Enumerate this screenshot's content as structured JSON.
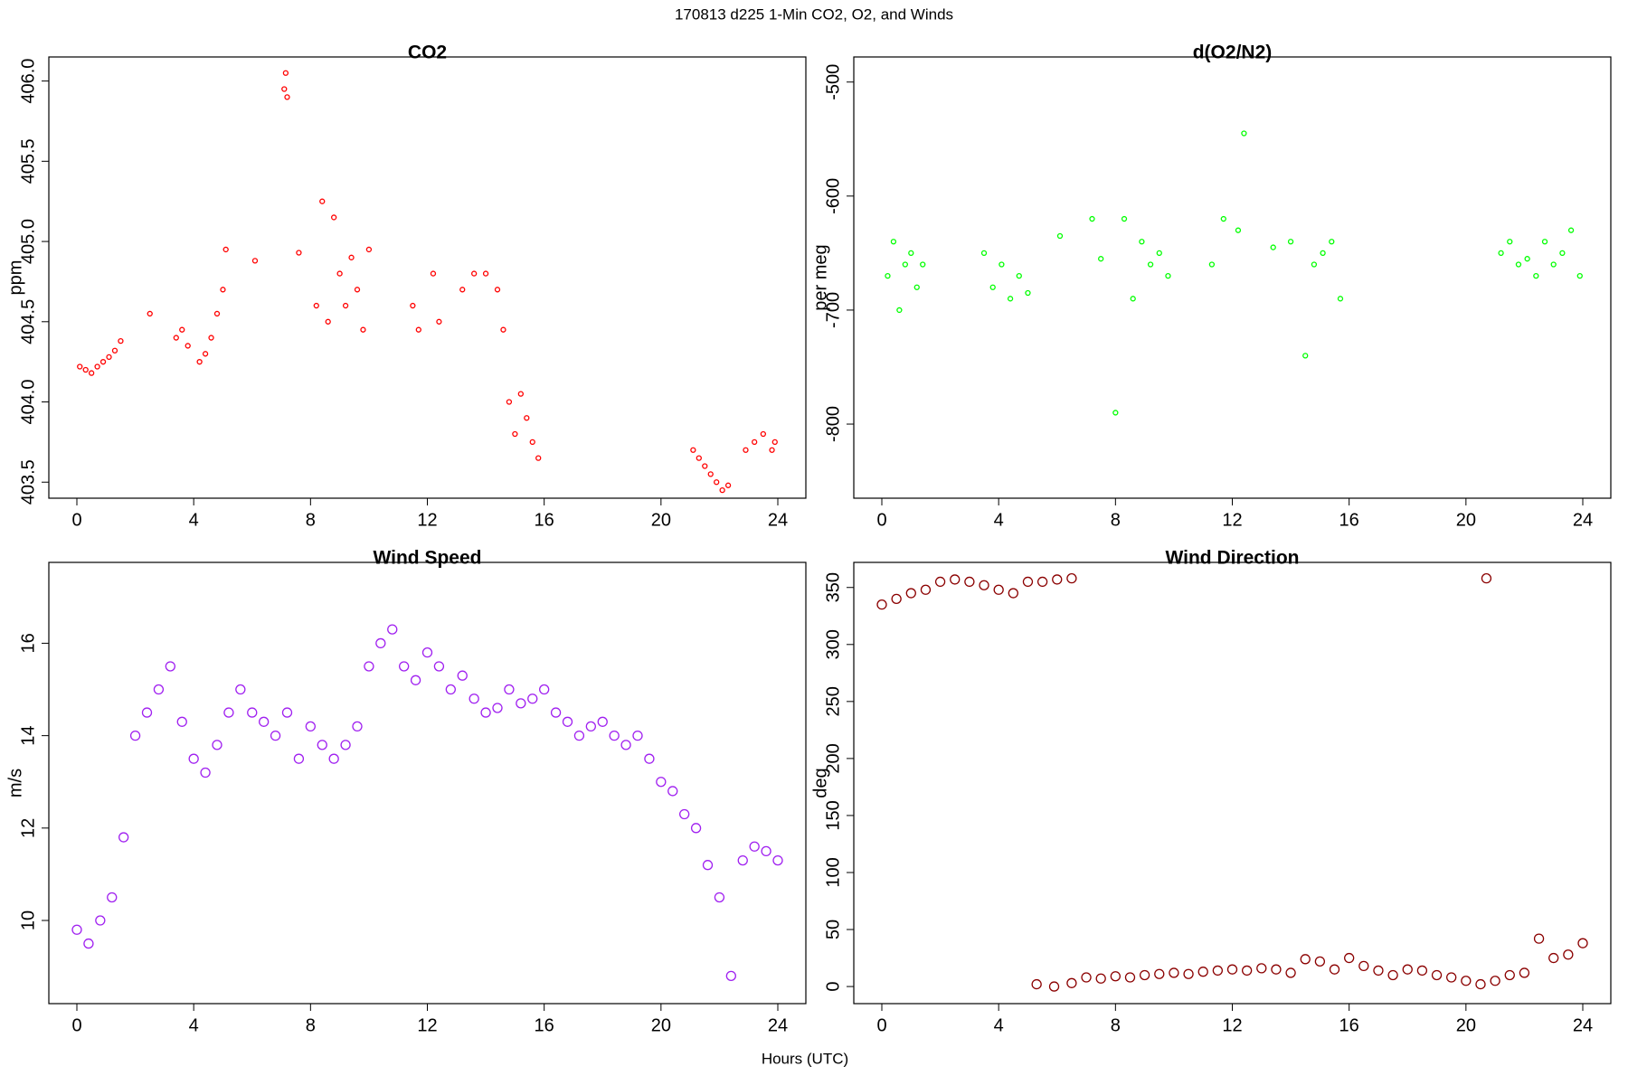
{
  "title": "170813   d225   1-Min CO2, O2, and Winds",
  "xlabel": "Hours (UTC)",
  "chart_data": [
    {
      "type": "scatter",
      "title": "CO2",
      "ylabel": "ppm",
      "color": "#ff0000",
      "marker_size": 2.5,
      "xlim": [
        -0.96,
        24.96
      ],
      "xticks": [
        0,
        4,
        8,
        12,
        16,
        20,
        24
      ],
      "ylim": [
        403.4,
        406.15
      ],
      "yticks": [
        403.5,
        {
          "value": 404,
          "label": "404.0"
        },
        404.5,
        {
          "value": 405,
          "label": "405.0"
        },
        405.5,
        {
          "value": 406,
          "label": "406.0"
        }
      ],
      "x": [
        0.1,
        0.3,
        0.5,
        0.7,
        0.9,
        1.1,
        1.3,
        1.5,
        2.5,
        3.4,
        3.6,
        3.8,
        4.2,
        4.4,
        4.6,
        4.8,
        5.0,
        5.1,
        6.1,
        7.1,
        7.15,
        7.2,
        7.6,
        8.2,
        8.4,
        8.6,
        8.8,
        9.0,
        9.2,
        9.4,
        9.6,
        9.8,
        10.0,
        11.5,
        11.7,
        12.2,
        12.4,
        13.2,
        13.6,
        14.0,
        14.4,
        14.6,
        14.8,
        15.0,
        15.2,
        15.4,
        15.6,
        15.8,
        21.1,
        21.3,
        21.5,
        21.7,
        21.9,
        22.1,
        22.3,
        22.9,
        23.2,
        23.5,
        23.8,
        23.9
      ],
      "values": [
        404.22,
        404.2,
        404.18,
        404.22,
        404.25,
        404.28,
        404.32,
        404.38,
        404.55,
        404.4,
        404.45,
        404.35,
        404.25,
        404.3,
        404.4,
        404.55,
        404.7,
        404.95,
        404.88,
        405.95,
        406.05,
        405.9,
        404.93,
        404.6,
        405.25,
        404.5,
        405.15,
        404.8,
        404.6,
        404.9,
        404.7,
        404.45,
        404.95,
        404.6,
        404.45,
        404.8,
        404.5,
        404.7,
        404.8,
        404.8,
        404.7,
        404.45,
        404.0,
        403.8,
        404.05,
        403.9,
        403.75,
        403.65,
        403.7,
        403.65,
        403.6,
        403.55,
        403.5,
        403.45,
        403.48,
        403.7,
        403.75,
        403.8,
        403.7,
        403.75
      ]
    },
    {
      "type": "scatter",
      "title": "d(O2/N2)",
      "ylabel": "per meg",
      "color": "#00ff00",
      "marker_size": 2.5,
      "xlim": [
        -0.96,
        24.96
      ],
      "xticks": [
        0,
        4,
        8,
        12,
        16,
        20,
        24
      ],
      "ylim": [
        -865,
        -478
      ],
      "yticks": [
        -800,
        -700,
        -600,
        -500
      ],
      "x": [
        0.2,
        0.4,
        0.6,
        0.8,
        1.0,
        1.2,
        1.4,
        3.5,
        3.8,
        4.1,
        4.4,
        4.7,
        5.0,
        6.1,
        7.2,
        7.5,
        8.0,
        8.3,
        8.6,
        8.9,
        9.2,
        9.5,
        9.8,
        11.3,
        11.7,
        12.2,
        12.4,
        13.4,
        14.0,
        14.5,
        14.8,
        15.1,
        15.4,
        15.7,
        21.2,
        21.5,
        21.8,
        22.1,
        22.4,
        22.7,
        23.0,
        23.3,
        23.6,
        23.9
      ],
      "values": [
        -670,
        -640,
        -700,
        -660,
        -650,
        -680,
        -660,
        -650,
        -680,
        -660,
        -690,
        -670,
        -685,
        -635,
        -620,
        -655,
        -790,
        -620,
        -690,
        -640,
        -660,
        -650,
        -670,
        -660,
        -620,
        -630,
        -545,
        -645,
        -640,
        -740,
        -660,
        -650,
        -640,
        -690,
        -650,
        -640,
        -660,
        -655,
        -670,
        -640,
        -660,
        -650,
        -630,
        -670
      ]
    },
    {
      "type": "scatter",
      "title": "Wind Speed",
      "ylabel": "m/s",
      "color": "#a020f0",
      "marker_size": 5,
      "xlim": [
        -0.96,
        24.96
      ],
      "xticks": [
        0,
        4,
        8,
        12,
        16,
        20,
        24
      ],
      "ylim": [
        8.2,
        17.75
      ],
      "yticks": [
        10,
        12,
        14,
        16
      ],
      "x": [
        0,
        0.4,
        0.8,
        1.2,
        1.6,
        2.0,
        2.4,
        2.8,
        3.2,
        3.6,
        4.0,
        4.4,
        4.8,
        5.2,
        5.6,
        6.0,
        6.4,
        6.8,
        7.2,
        7.6,
        8.0,
        8.4,
        8.8,
        9.2,
        9.6,
        10.0,
        10.4,
        10.8,
        11.2,
        11.6,
        12.0,
        12.4,
        12.8,
        13.2,
        13.6,
        14.0,
        14.4,
        14.8,
        15.2,
        15.6,
        16.0,
        16.4,
        16.8,
        17.2,
        17.6,
        18.0,
        18.4,
        18.8,
        19.2,
        19.6,
        20.0,
        20.4,
        20.8,
        21.2,
        21.6,
        22.0,
        22.4,
        22.8,
        23.2,
        23.6,
        24.0
      ],
      "values": [
        9.8,
        9.5,
        10.0,
        10.5,
        11.8,
        14.0,
        14.5,
        15.0,
        15.5,
        14.3,
        13.5,
        13.2,
        13.8,
        14.5,
        15.0,
        14.5,
        14.3,
        14.0,
        14.5,
        13.5,
        14.2,
        13.8,
        13.5,
        13.8,
        14.2,
        15.5,
        16.0,
        16.3,
        15.5,
        15.2,
        15.8,
        15.5,
        15.0,
        15.3,
        14.8,
        14.5,
        14.6,
        15.0,
        14.7,
        14.8,
        15.0,
        14.5,
        14.3,
        14.0,
        14.2,
        14.3,
        14.0,
        13.8,
        14.0,
        13.5,
        13.0,
        12.8,
        12.3,
        12.0,
        11.2,
        10.5,
        8.8,
        11.3,
        11.6,
        11.5,
        11.3
      ]
    },
    {
      "type": "scatter",
      "title": "Wind Direction",
      "ylabel": "deg",
      "color": "#8b0000",
      "marker_size": 5,
      "xlim": [
        -0.96,
        24.96
      ],
      "xticks": [
        0,
        4,
        8,
        12,
        16,
        20,
        24
      ],
      "ylim": [
        -15,
        372
      ],
      "yticks": [
        0,
        50,
        100,
        150,
        200,
        250,
        300,
        350
      ],
      "x": [
        0,
        0.5,
        1,
        1.5,
        2,
        2.5,
        3,
        3.5,
        4,
        4.5,
        5,
        5.5,
        6,
        6.5,
        5.3,
        5.9,
        6.5,
        7,
        7.5,
        8,
        8.5,
        9,
        9.5,
        10,
        10.5,
        11,
        11.5,
        12,
        12.5,
        13,
        13.5,
        14,
        14.5,
        15,
        15.5,
        16,
        16.5,
        17,
        17.5,
        18,
        18.5,
        19,
        19.5,
        20,
        20.5,
        20.7,
        21,
        21.5,
        22,
        22.5,
        23,
        23.5,
        24
      ],
      "values": [
        335,
        340,
        345,
        348,
        355,
        357,
        355,
        352,
        348,
        345,
        355,
        355,
        357,
        358,
        2,
        0,
        3,
        8,
        7,
        9,
        8,
        10,
        11,
        12,
        11,
        13,
        14,
        15,
        14,
        16,
        15,
        12,
        24,
        22,
        15,
        25,
        18,
        14,
        10,
        15,
        14,
        10,
        8,
        5,
        2,
        358,
        5,
        10,
        12,
        42,
        25,
        28,
        38
      ]
    }
  ]
}
